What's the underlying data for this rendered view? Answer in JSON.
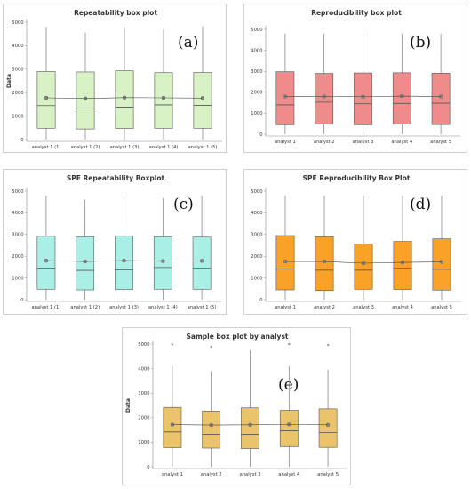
{
  "colors": {
    "a": "#d9f2c5",
    "b": "#f08b8b",
    "c": "#a9efe6",
    "d": "#f9a227",
    "e": "#ebc36b",
    "stroke": "#555555",
    "mean_line": "#444444"
  },
  "chart_data": [
    {
      "type": "box",
      "panel_label": "(a)",
      "title": "Repeatability box plot",
      "xlabel": "",
      "ylabel": "Data",
      "ylim": [
        0,
        5000
      ],
      "yticks": [
        0,
        1000,
        2000,
        3000,
        4000,
        5000
      ],
      "grid": false,
      "fill": "a",
      "categories": [
        "analyst 1 (1)",
        "analyst 1 (2)",
        "analyst 1 (3)",
        "analyst 1 (4)",
        "analyst 1 (5)"
      ],
      "boxes": [
        {
          "min": 0,
          "q1": 480,
          "median": 1450,
          "q3": 2900,
          "max": 4800,
          "mean": 1780,
          "outliers": []
        },
        {
          "min": 0,
          "q1": 450,
          "median": 1350,
          "q3": 2880,
          "max": 4550,
          "mean": 1750,
          "outliers": []
        },
        {
          "min": 0,
          "q1": 470,
          "median": 1380,
          "q3": 2930,
          "max": 4780,
          "mean": 1790,
          "outliers": []
        },
        {
          "min": 0,
          "q1": 480,
          "median": 1480,
          "q3": 2850,
          "max": 4680,
          "mean": 1780,
          "outliers": []
        },
        {
          "min": 0,
          "q1": 480,
          "median": 1460,
          "q3": 2860,
          "max": 4820,
          "mean": 1770,
          "outliers": []
        }
      ]
    },
    {
      "type": "box",
      "panel_label": "(b)",
      "title": "Reproducibility box plot",
      "xlabel": "",
      "ylabel": "",
      "ylim": [
        0,
        5000
      ],
      "yticks": [
        0,
        1000,
        2000,
        3000,
        4000,
        5000
      ],
      "grid": false,
      "fill": "b",
      "categories": [
        "analyst 1",
        "analyst 2",
        "analyst 3",
        "analyst 4",
        "analyst 5"
      ],
      "boxes": [
        {
          "min": 0,
          "q1": 450,
          "median": 1400,
          "q3": 2980,
          "max": 4800,
          "mean": 1800,
          "outliers": []
        },
        {
          "min": 0,
          "q1": 480,
          "median": 1530,
          "q3": 2900,
          "max": 4800,
          "mean": 1800,
          "outliers": []
        },
        {
          "min": 0,
          "q1": 450,
          "median": 1450,
          "q3": 2920,
          "max": 4800,
          "mean": 1790,
          "outliers": []
        },
        {
          "min": 0,
          "q1": 480,
          "median": 1470,
          "q3": 2930,
          "max": 4800,
          "mean": 1820,
          "outliers": []
        },
        {
          "min": 0,
          "q1": 460,
          "median": 1480,
          "q3": 2910,
          "max": 4800,
          "mean": 1800,
          "outliers": []
        }
      ]
    },
    {
      "type": "box",
      "panel_label": "(c)",
      "title": "SPE Repeatability Boxplot",
      "xlabel": "",
      "ylabel": "",
      "ylim": [
        0,
        5000
      ],
      "yticks": [
        0,
        1000,
        2000,
        3000,
        4000,
        5000
      ],
      "grid": false,
      "fill": "c",
      "categories": [
        "analyst 1 (1)",
        "analyst 1 (2)",
        "analyst 1 (3)",
        "analyst 1 (4)",
        "analyst 1 (5)"
      ],
      "boxes": [
        {
          "min": 0,
          "q1": 480,
          "median": 1450,
          "q3": 2920,
          "max": 4800,
          "mean": 1800,
          "outliers": []
        },
        {
          "min": 0,
          "q1": 450,
          "median": 1350,
          "q3": 2900,
          "max": 4600,
          "mean": 1760,
          "outliers": []
        },
        {
          "min": 0,
          "q1": 470,
          "median": 1380,
          "q3": 2930,
          "max": 4780,
          "mean": 1800,
          "outliers": []
        },
        {
          "min": 0,
          "q1": 480,
          "median": 1480,
          "q3": 2900,
          "max": 4680,
          "mean": 1780,
          "outliers": []
        },
        {
          "min": 0,
          "q1": 480,
          "median": 1460,
          "q3": 2880,
          "max": 4800,
          "mean": 1790,
          "outliers": []
        }
      ]
    },
    {
      "type": "box",
      "panel_label": "(d)",
      "title": "SPE Reproducibility Box Plot",
      "xlabel": "",
      "ylabel": "",
      "ylim": [
        0,
        5000
      ],
      "yticks": [
        0,
        1000,
        2000,
        3000,
        4000,
        5000
      ],
      "grid": false,
      "fill": "d",
      "categories": [
        "analyst 1",
        "analyst 2",
        "analyst 3",
        "analyst 4",
        "analyst 5"
      ],
      "boxes": [
        {
          "min": 0,
          "q1": 450,
          "median": 1420,
          "q3": 2950,
          "max": 4800,
          "mean": 1760,
          "outliers": []
        },
        {
          "min": 0,
          "q1": 420,
          "median": 1360,
          "q3": 2900,
          "max": 4800,
          "mean": 1760,
          "outliers": []
        },
        {
          "min": 0,
          "q1": 480,
          "median": 1360,
          "q3": 2570,
          "max": 4800,
          "mean": 1680,
          "outliers": []
        },
        {
          "min": 0,
          "q1": 470,
          "median": 1450,
          "q3": 2680,
          "max": 4800,
          "mean": 1720,
          "outliers": []
        },
        {
          "min": 0,
          "q1": 440,
          "median": 1400,
          "q3": 2800,
          "max": 4800,
          "mean": 1740,
          "outliers": []
        }
      ]
    },
    {
      "type": "box",
      "panel_label": "(e)",
      "title": "Sample box plot by analyst",
      "xlabel": "",
      "ylabel": "Data",
      "ylim": [
        0,
        5000
      ],
      "yticks": [
        0,
        1000,
        2000,
        3000,
        4000,
        5000
      ],
      "grid": false,
      "fill": "e",
      "categories": [
        "analyst 1",
        "analyst 2",
        "analyst 3",
        "analyst 4",
        "analyst 5"
      ],
      "boxes": [
        {
          "min": 0,
          "q1": 780,
          "median": 1420,
          "q3": 2420,
          "max": 4100,
          "mean": 1720,
          "outliers": [
            4950
          ]
        },
        {
          "min": 0,
          "q1": 760,
          "median": 1320,
          "q3": 2270,
          "max": 3900,
          "mean": 1700,
          "outliers": [
            4850
          ]
        },
        {
          "min": 0,
          "q1": 740,
          "median": 1320,
          "q3": 2400,
          "max": 4750,
          "mean": 1710,
          "outliers": []
        },
        {
          "min": 0,
          "q1": 820,
          "median": 1470,
          "q3": 2300,
          "max": 4100,
          "mean": 1730,
          "outliers": [
            4970
          ]
        },
        {
          "min": 0,
          "q1": 790,
          "median": 1390,
          "q3": 2360,
          "max": 3960,
          "mean": 1710,
          "outliers": [
            4920
          ]
        }
      ]
    }
  ]
}
